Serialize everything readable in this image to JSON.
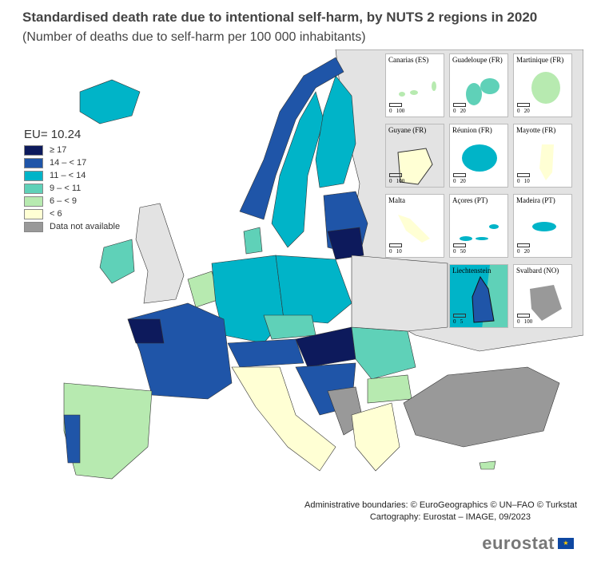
{
  "title": "Standardised death rate due to intentional self-harm, by NUTS 2 regions in 2020",
  "subtitle": "(Number of deaths due to self-harm per 100 000 inhabitants)",
  "legend": {
    "title": "EU= 10.24",
    "items": [
      {
        "label": "≥ 17",
        "color": "#0d1a5c"
      },
      {
        "label": "14 – < 17",
        "color": "#1f55a8"
      },
      {
        "label": "11 – < 14",
        "color": "#00b4c8"
      },
      {
        "label": "9 – < 11",
        "color": "#5fd1b8"
      },
      {
        "label": "6 – < 9",
        "color": "#b7eab0"
      },
      {
        "label": "< 6",
        "color": "#ffffd4"
      },
      {
        "label": "Data not available",
        "color": "#999999"
      }
    ]
  },
  "insets": [
    {
      "name": "Canarias (ES)",
      "scale": [
        "0",
        "100"
      ]
    },
    {
      "name": "Guadeloupe (FR)",
      "scale": [
        "0",
        "20"
      ]
    },
    {
      "name": "Martinique (FR)",
      "scale": [
        "0",
        "20"
      ]
    },
    {
      "name": "Guyane (FR)",
      "scale": [
        "0",
        "100"
      ]
    },
    {
      "name": "Réunion (FR)",
      "scale": [
        "0",
        "20"
      ]
    },
    {
      "name": "Mayotte (FR)",
      "scale": [
        "0",
        "10"
      ]
    },
    {
      "name": "Malta",
      "scale": [
        "0",
        "10"
      ]
    },
    {
      "name": "Açores (PT)",
      "scale": [
        "0",
        "50"
      ]
    },
    {
      "name": "Madeira (PT)",
      "scale": [
        "0",
        "20"
      ]
    },
    {
      "name": "Liechtenstein",
      "scale": [
        "0",
        "5"
      ]
    },
    {
      "name": "Svalbard (NO)",
      "scale": [
        "0",
        "100"
      ]
    }
  ],
  "credits": {
    "line1": "Administrative boundaries: © EuroGeographics © UN–FAO © Turkstat",
    "line2": "Cartography: Eurostat – IMAGE, 09/2023"
  },
  "logo": "eurostat"
}
